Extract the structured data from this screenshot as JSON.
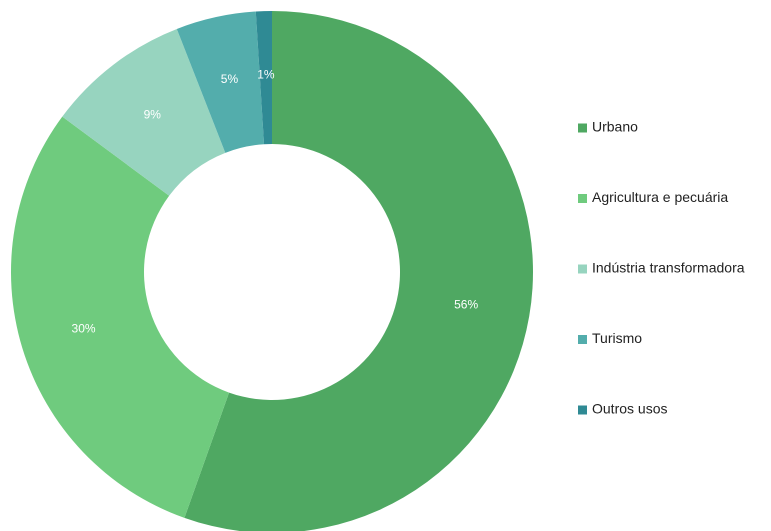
{
  "chart_data": {
    "type": "pie",
    "categories": [
      "Urbano",
      "Agricultura e pecuária",
      "Indústria transformadora",
      "Turismo",
      "Outros usos"
    ],
    "values": [
      56,
      30,
      9,
      5,
      1
    ],
    "value_labels": [
      "56%",
      "30%",
      "9%",
      "5%",
      "1%"
    ],
    "colors": [
      "#4fa862",
      "#6fcb7e",
      "#97d4bf",
      "#53adac",
      "#2f8a94"
    ],
    "donut": true,
    "legend": "right"
  }
}
